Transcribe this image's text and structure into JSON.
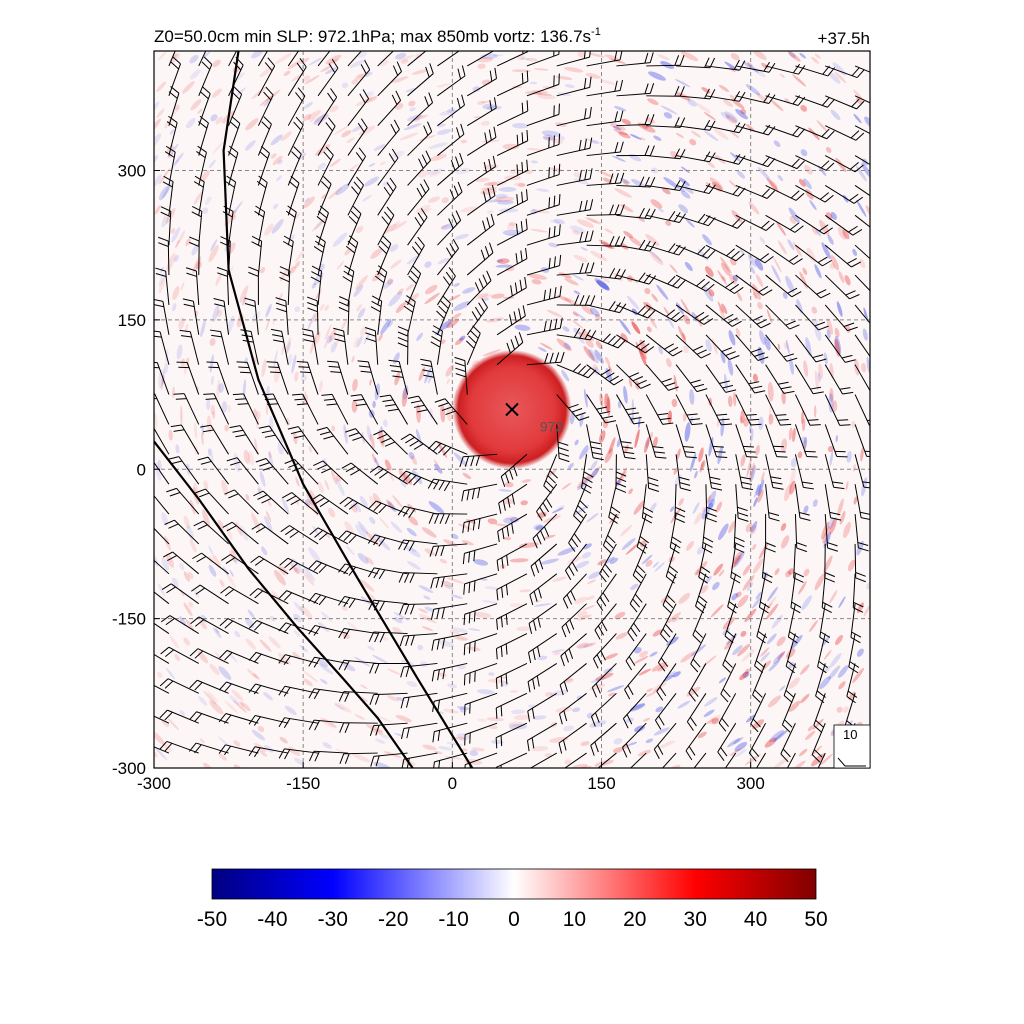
{
  "chart_data": {
    "type": "heatmap",
    "title": "Z0=50.0cm  min SLP: 972.1hPa; max 850mb vortz: 136.7s",
    "title_superscript": "-1",
    "time_label": "+37.5h",
    "xlim": [
      -300,
      420
    ],
    "ylim": [
      -300,
      420
    ],
    "x_ticks": [
      -300,
      -150,
      0,
      150,
      300
    ],
    "y_ticks": [
      -300,
      -150,
      0,
      150,
      300
    ],
    "grid": true,
    "colorbar": {
      "ticks": [
        -50,
        -40,
        -30,
        -20,
        -10,
        0,
        10,
        20,
        30,
        40,
        50
      ],
      "min": -50,
      "max": 50,
      "colors": [
        "#000080",
        "#0000ff",
        "#ffffff",
        "#ff0000",
        "#800000"
      ]
    },
    "center_marker": {
      "x": 60,
      "y": 60
    },
    "pressure_contour_label": {
      "text": "972",
      "x": 88,
      "y": 38
    },
    "barb_key": {
      "label": "10"
    },
    "vortex_eye": {
      "x": 60,
      "y": 60,
      "radius": 60
    },
    "boundary_lines": [
      {
        "points": [
          [
            -215,
            420
          ],
          [
            -230,
            320
          ],
          [
            -225,
            200
          ],
          [
            -195,
            90
          ],
          [
            -150,
            -15
          ],
          [
            -95,
            -110
          ],
          [
            -35,
            -210
          ],
          [
            20,
            -300
          ]
        ]
      },
      {
        "points": [
          [
            -300,
            28
          ],
          [
            -255,
            -30
          ],
          [
            -205,
            -100
          ],
          [
            -155,
            -160
          ],
          [
            -110,
            -210
          ],
          [
            -75,
            -250
          ],
          [
            -40,
            -300
          ]
        ]
      }
    ]
  }
}
